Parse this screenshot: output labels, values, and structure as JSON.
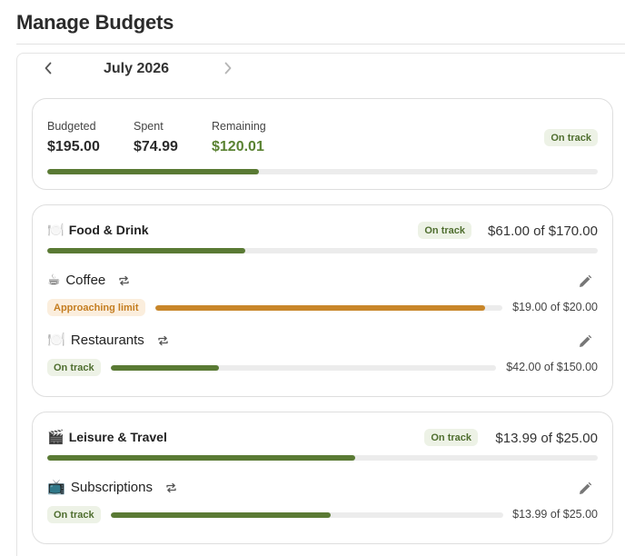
{
  "header": {
    "title": "Manage Budgets"
  },
  "month_nav": {
    "label": "July 2026"
  },
  "summary": {
    "budgeted_label": "Budgeted",
    "budgeted_value": "$195.00",
    "spent_label": "Spent",
    "spent_value": "$74.99",
    "remaining_label": "Remaining",
    "remaining_value": "$120.01",
    "status": "On track",
    "progress": 0.385
  },
  "groups": [
    {
      "emoji": "🍽️",
      "name": "Food & Drink",
      "status": "On track",
      "amount": "$61.00 of $170.00",
      "progress": 0.359,
      "categories": [
        {
          "emoji": "☕",
          "name": "Coffee",
          "status": "Approaching limit",
          "amount": "$19.00 of $20.00",
          "progress": 0.95
        },
        {
          "emoji": "🍽️",
          "name": "Restaurants",
          "status": "On track",
          "amount": "$42.00 of $150.00",
          "progress": 0.28
        }
      ]
    },
    {
      "emoji": "🎬",
      "name": "Leisure & Travel",
      "status": "On track",
      "amount": "$13.99 of $25.00",
      "progress": 0.56,
      "categories": [
        {
          "emoji": "📺",
          "name": "Subscriptions",
          "status": "On track",
          "amount": "$13.99 of $25.00",
          "progress": 0.56
        }
      ]
    }
  ],
  "colors": {
    "accent_green": "#5a7a34",
    "warning_orange": "#c8862a",
    "positive_text": "#5a8232"
  },
  "icons": {
    "prev": "chevron-left-icon",
    "next": "chevron-right-icon",
    "recurring": "repeat-icon",
    "edit": "pencil-icon"
  }
}
